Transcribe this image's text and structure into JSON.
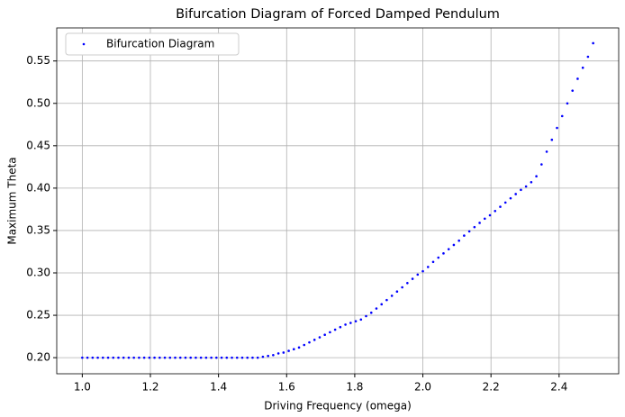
{
  "chart_data": {
    "type": "scatter",
    "title": "Bifurcation Diagram of Forced Damped Pendulum",
    "xlabel": "Driving Frequency (omega)",
    "ylabel": "Maximum Theta",
    "grid": true,
    "legend": "upper left",
    "xlim": [
      0.925,
      2.575
    ],
    "ylim": [
      0.181,
      0.589
    ],
    "xticks": [
      {
        "value": 1.0,
        "label": "1.0"
      },
      1.2,
      1.4,
      1.6,
      1.8,
      {
        "value": 2.0,
        "label": "2.0"
      },
      2.2,
      2.4
    ],
    "yticks": [
      {
        "value": 0.2,
        "label": "0.20"
      },
      0.25,
      {
        "value": 0.3,
        "label": "0.30"
      },
      0.35,
      {
        "value": 0.4,
        "label": "0.40"
      },
      0.45,
      {
        "value": 0.5,
        "label": "0.50"
      },
      0.55
    ],
    "series": [
      {
        "name": "Bifurcation Diagram",
        "color": "#0000ff",
        "x": [
          1.0,
          1.0152,
          1.0303,
          1.0455,
          1.0606,
          1.0758,
          1.0909,
          1.1061,
          1.1212,
          1.1364,
          1.1515,
          1.1667,
          1.1818,
          1.197,
          1.2121,
          1.2273,
          1.2424,
          1.2576,
          1.2727,
          1.2879,
          1.303,
          1.3182,
          1.3333,
          1.3485,
          1.3636,
          1.3788,
          1.3939,
          1.4091,
          1.4242,
          1.4394,
          1.4545,
          1.4697,
          1.4848,
          1.5,
          1.5152,
          1.5303,
          1.5455,
          1.5606,
          1.5758,
          1.5909,
          1.6061,
          1.6212,
          1.6364,
          1.6515,
          1.6667,
          1.6818,
          1.697,
          1.7121,
          1.7273,
          1.7424,
          1.7576,
          1.7727,
          1.7879,
          1.803,
          1.8182,
          1.8333,
          1.8485,
          1.8636,
          1.8788,
          1.8939,
          1.9091,
          1.9242,
          1.9394,
          1.9545,
          1.9697,
          1.9848,
          2.0,
          2.0152,
          2.0303,
          2.0455,
          2.0606,
          2.0758,
          2.0909,
          2.1061,
          2.1212,
          2.1364,
          2.1515,
          2.1667,
          2.1818,
          2.197,
          2.2121,
          2.2273,
          2.2424,
          2.2576,
          2.2727,
          2.2879,
          2.303,
          2.3182,
          2.3333,
          2.3485,
          2.3636,
          2.3788,
          2.3939,
          2.4091,
          2.4242,
          2.4394,
          2.4545,
          2.4697,
          2.4848,
          2.5
        ],
        "values": [
          0.2,
          0.2,
          0.2,
          0.2,
          0.2,
          0.2,
          0.2,
          0.2,
          0.2,
          0.2,
          0.2,
          0.2,
          0.2,
          0.2,
          0.2,
          0.2,
          0.2,
          0.2,
          0.2,
          0.2,
          0.2,
          0.2,
          0.2,
          0.2,
          0.2,
          0.2,
          0.2,
          0.2,
          0.2,
          0.2,
          0.2,
          0.2,
          0.2,
          0.2,
          0.2,
          0.201,
          0.202,
          0.203,
          0.205,
          0.206,
          0.208,
          0.21,
          0.212,
          0.215,
          0.218,
          0.221,
          0.224,
          0.227,
          0.23,
          0.233,
          0.236,
          0.239,
          0.241,
          0.243,
          0.245,
          0.249,
          0.253,
          0.258,
          0.263,
          0.268,
          0.273,
          0.278,
          0.283,
          0.288,
          0.293,
          0.298,
          0.302,
          0.307,
          0.313,
          0.318,
          0.323,
          0.328,
          0.333,
          0.338,
          0.344,
          0.349,
          0.354,
          0.359,
          0.364,
          0.368,
          0.373,
          0.378,
          0.383,
          0.388,
          0.393,
          0.398,
          0.402,
          0.407,
          0.414,
          0.428,
          0.443,
          0.457,
          0.471,
          0.485,
          0.5,
          0.515,
          0.529,
          0.542,
          0.555,
          0.571
        ]
      }
    ]
  }
}
